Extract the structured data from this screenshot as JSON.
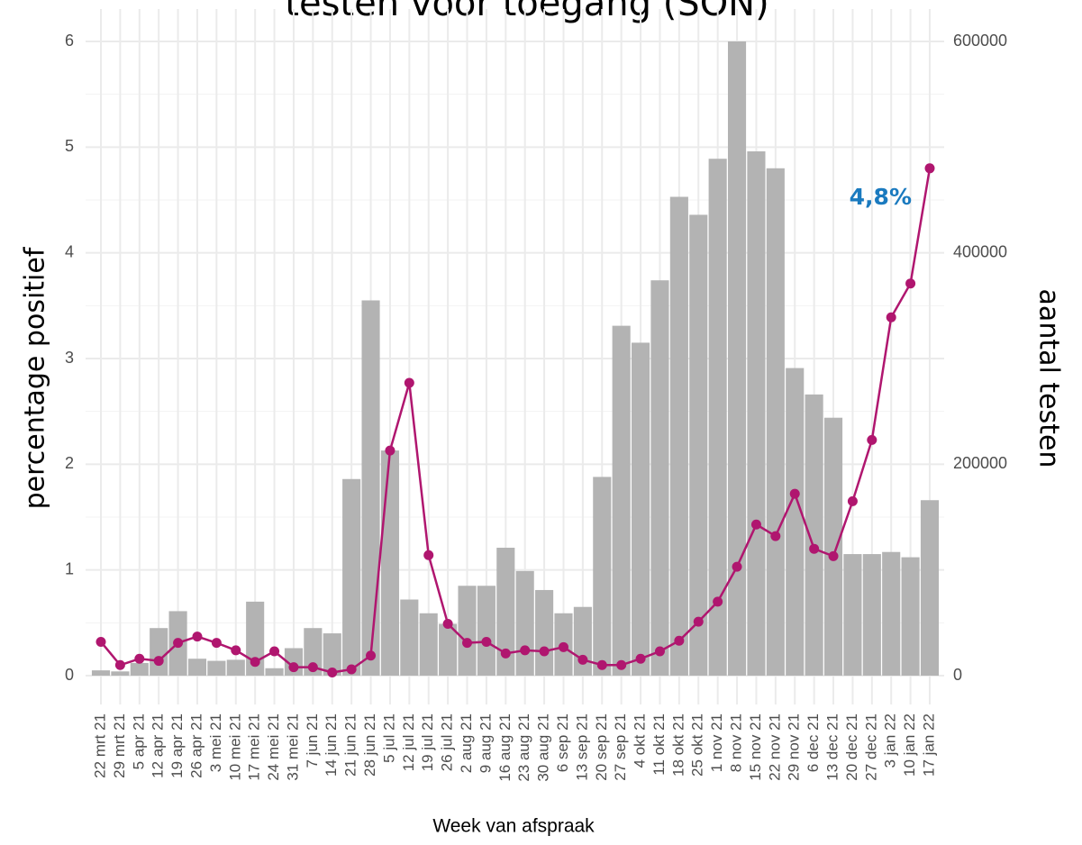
{
  "chart_data": {
    "type": "bar-line",
    "title": "testen voor toegang (SON)",
    "x_label": "Week van afspraak",
    "y_label": "percentage positief",
    "y2_label": "aantal testen",
    "annotation": "4,8%",
    "categories": [
      "22 mrt 21",
      "29 mrt 21",
      "5 apr 21",
      "12 apr 21",
      "19 apr 21",
      "26 apr 21",
      "3 mei 21",
      "10 mei 21",
      "17 mei 21",
      "24 mei 21",
      "31 mei 21",
      "7 jun 21",
      "14 jun 21",
      "21 jun 21",
      "28 jun 21",
      "5 jul 21",
      "12 jul 21",
      "19 jul 21",
      "26 jul 21",
      "2 aug 21",
      "9 aug 21",
      "16 aug 21",
      "23 aug 21",
      "30 aug 21",
      "6 sep 21",
      "13 sep 21",
      "20 sep 21",
      "27 sep 21",
      "4 okt 21",
      "11 okt 21",
      "18 okt 21",
      "25 okt 21",
      "1 nov 21",
      "8 nov 21",
      "15 nov 21",
      "22 nov 21",
      "29 nov 21",
      "6 dec 21",
      "13 dec 21",
      "20 dec 21",
      "27 dec 21",
      "3 jan 22",
      "10 jan 22",
      "17 jan 22"
    ],
    "series": [
      {
        "kind": "bar",
        "axis": "y2",
        "color": "#b3b3b3",
        "values": [
          5000,
          4000,
          12000,
          45000,
          61000,
          16000,
          14000,
          15000,
          70000,
          7000,
          26000,
          45000,
          40000,
          186000,
          355000,
          213000,
          72000,
          59000,
          49000,
          85000,
          85000,
          121000,
          99000,
          81000,
          59000,
          65000,
          188000,
          331000,
          315000,
          374000,
          453000,
          436000,
          489000,
          600000,
          496000,
          480000,
          291000,
          266000,
          244000,
          115000,
          115000,
          117000,
          112000,
          166000
        ]
      },
      {
        "kind": "line",
        "axis": "y",
        "color": "#b0166f",
        "values": [
          0.32,
          0.1,
          0.16,
          0.14,
          0.31,
          0.37,
          0.31,
          0.24,
          0.13,
          0.23,
          0.08,
          0.08,
          0.03,
          0.06,
          0.19,
          2.13,
          2.77,
          1.14,
          0.49,
          0.31,
          0.32,
          0.21,
          0.24,
          0.23,
          0.27,
          0.15,
          0.1,
          0.1,
          0.16,
          0.23,
          0.33,
          0.51,
          0.7,
          1.03,
          1.43,
          1.32,
          1.72,
          1.2,
          1.13,
          1.65,
          2.23,
          3.39,
          3.71,
          4.8
        ]
      }
    ],
    "annotation_color": "#1a7abf",
    "ylim": [
      0,
      6
    ],
    "yticks": [
      0,
      1,
      2,
      3,
      4,
      5,
      6
    ],
    "y2lim": [
      0,
      600000
    ],
    "y2ticks": [
      0,
      200000,
      400000,
      600000
    ],
    "grid": true
  }
}
